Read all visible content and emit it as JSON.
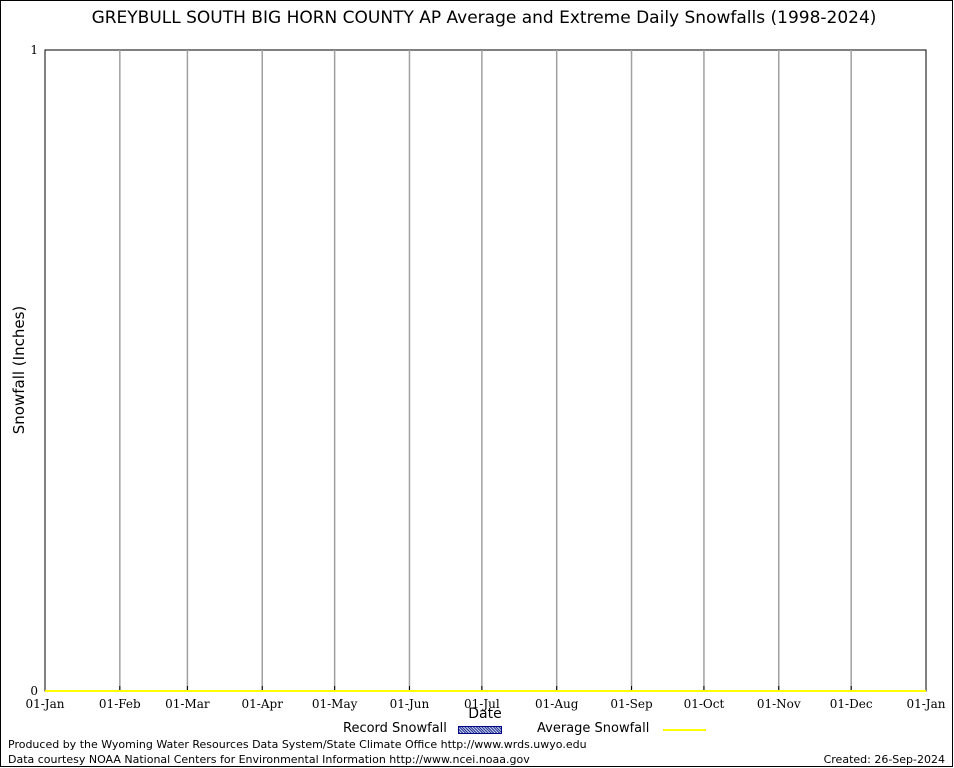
{
  "chart_data": {
    "type": "area",
    "title": "GREYBULL SOUTH BIG HORN COUNTY AP Average and Extreme Daily Snowfalls (1998-2024)",
    "xlabel": "Date",
    "ylabel": "Snowfall (Inches)",
    "x_ticks": [
      "01-Jan",
      "01-Feb",
      "01-Mar",
      "01-Apr",
      "01-May",
      "01-Jun",
      "01-Jul",
      "01-Aug",
      "01-Sep",
      "01-Oct",
      "01-Nov",
      "01-Dec",
      "01-Jan"
    ],
    "x_tick_days": [
      0,
      31,
      59,
      90,
      120,
      151,
      181,
      212,
      243,
      273,
      304,
      334,
      365
    ],
    "y_ticks": [
      "0",
      "1"
    ],
    "ylim": [
      0,
      1
    ],
    "xlim": [
      0,
      365
    ],
    "grid": "vertical",
    "series": [
      {
        "name": "Record Snowfall",
        "style": "hatched-fill",
        "color": "#00008b",
        "x": [
          0,
          365
        ],
        "values": [
          0,
          0
        ]
      },
      {
        "name": "Average Snowfall",
        "style": "line",
        "color": "#ffff00",
        "x": [
          0,
          365
        ],
        "values": [
          0,
          0
        ]
      }
    ]
  },
  "footer": {
    "produced": "Produced by the Wyoming Water Resources Data System/State Climate Office http://www.wrds.uwyo.edu",
    "courtesy": "Data courtesy NOAA National Centers for Environmental Information http://www.ncei.noaa.gov",
    "created": "Created: 26-Sep-2024"
  }
}
